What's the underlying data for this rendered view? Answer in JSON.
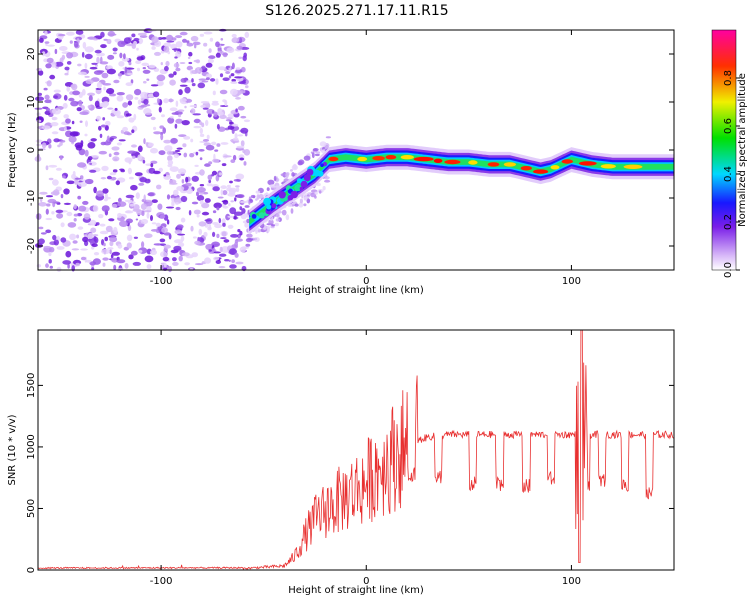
{
  "title": "S126.2025.271.17.11.R15",
  "chart_data": [
    {
      "type": "heatmap",
      "panel": "top",
      "xlabel": "Height of straight line (km)",
      "ylabel": "Frequency (Hz)",
      "xlim": [
        -160,
        150
      ],
      "ylim": [
        -25,
        25
      ],
      "x_ticks": [
        -100,
        0,
        100
      ],
      "y_ticks": [
        -20,
        -10,
        0,
        10,
        20
      ],
      "colorbar": {
        "label": "Normalized spectral amplitude",
        "range": [
          0,
          1
        ],
        "ticks": [
          "0.0",
          "0.2",
          "0.4",
          "0.6",
          "0.8"
        ]
      },
      "ridge": {
        "x": [
          -57,
          -45,
          -35,
          -25,
          -18,
          -10,
          0,
          10,
          20,
          30,
          40,
          50,
          60,
          70,
          80,
          85,
          90,
          95,
          100,
          110,
          120,
          130,
          140,
          150
        ],
        "y": [
          -15,
          -11,
          -8,
          -5,
          -2,
          -1.5,
          -2,
          -1.5,
          -1.5,
          -2,
          -2.5,
          -2.5,
          -3,
          -3,
          -4,
          -4.5,
          -4,
          -3,
          -2,
          -3,
          -3.5,
          -3.5,
          -3.5,
          -3.5
        ]
      },
      "noise_region_x": [
        -160,
        -58
      ]
    },
    {
      "type": "line",
      "panel": "bottom",
      "xlabel": "Height of straight line (km)",
      "ylabel": "SNR (10 * v/v)",
      "xlim": [
        -160,
        150
      ],
      "ylim": [
        0,
        1950
      ],
      "x_ticks": [
        -100,
        0,
        100
      ],
      "y_ticks": [
        0,
        500,
        1000,
        1500
      ],
      "color": "#e83030",
      "envelope": {
        "x": [
          -160,
          -60,
          -40,
          -35,
          -30,
          -25,
          -20,
          -15,
          -10,
          -5,
          0,
          5,
          10,
          15,
          20,
          25,
          30,
          40,
          50,
          60,
          70,
          80,
          90,
          100,
          105,
          110,
          120,
          130,
          140,
          150
        ],
        "y": [
          10,
          12,
          30,
          100,
          250,
          380,
          450,
          500,
          550,
          600,
          650,
          750,
          800,
          870,
          950,
          1050,
          1080,
          1100,
          1100,
          1100,
          1100,
          1100,
          1100,
          1100,
          1100,
          1100,
          1100,
          1100,
          1100,
          1100
        ]
      },
      "dips": {
        "x": [
          22,
          35,
          52,
          65,
          78,
          90,
          107,
          115,
          126,
          138
        ],
        "y": [
          720,
          700,
          640,
          640,
          620,
          680,
          600,
          660,
          630,
          560
        ]
      },
      "spike": {
        "x": 105,
        "y_max": 1950,
        "y_min": 60
      }
    }
  ]
}
